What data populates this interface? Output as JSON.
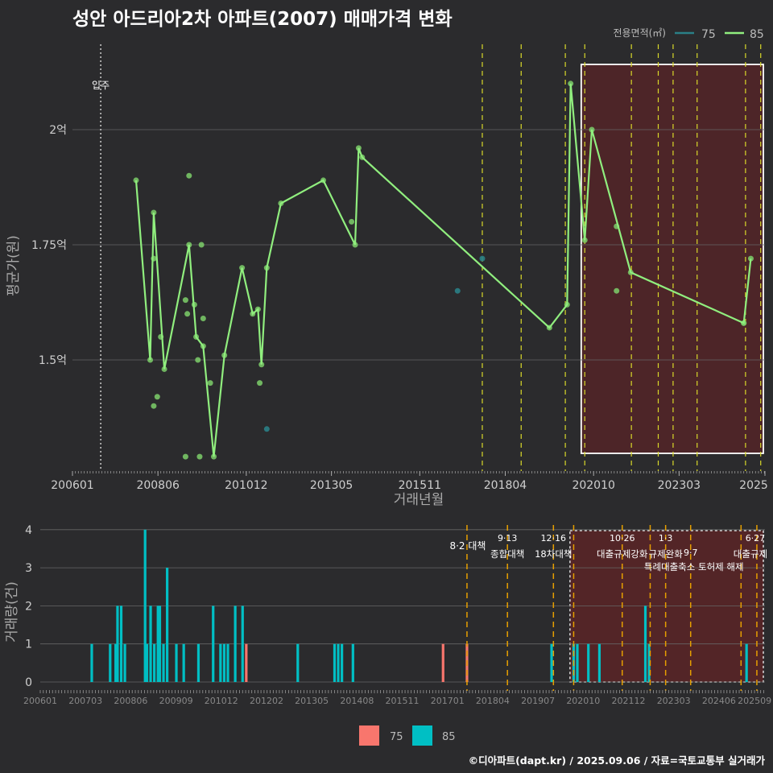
{
  "title": "성안 아드리아2차 아파트(2007) 매매가격 변화",
  "footer": "©디아파트(dapt.kr) / 2025.09.06 / 자료=국토교통부 실거래가",
  "colors": {
    "background": "#2b2b2d",
    "c75_line": "#2a7f86",
    "c85_line": "#90ee7e",
    "c85_dot": "#7ccf6a",
    "c75_dot": "#2a7f86",
    "bar75": "#f8766d",
    "bar85": "#00bfc4",
    "policy_top": "#d9d92a",
    "policy_bottom": "#e69f00",
    "highlight": "#5a2427"
  },
  "top_chart": {
    "type": "line",
    "ylabel": "평균가(원)",
    "xlabel": "거래년월",
    "y_ticks": [
      {
        "value": 1.5,
        "label": "1.5억"
      },
      {
        "value": 1.75,
        "label": "1.75억"
      },
      {
        "value": 2.0,
        "label": "2억"
      }
    ],
    "ylim": [
      1.25,
      2.22
    ],
    "x_ticks": [
      "200601",
      "200806",
      "201012",
      "201305",
      "201511",
      "201804",
      "202010",
      "202303",
      "2025"
    ],
    "legend_title": "전용면적(㎡)",
    "legend": [
      {
        "name": "75"
      },
      {
        "name": "85"
      }
    ],
    "annotation": "입주",
    "series_85_line": [
      [
        2007.8,
        1.89
      ],
      [
        2008.2,
        1.5
      ],
      [
        2008.3,
        1.82
      ],
      [
        2008.6,
        1.48
      ],
      [
        2009.3,
        1.75
      ],
      [
        2009.5,
        1.55
      ],
      [
        2009.7,
        1.53
      ],
      [
        2010.0,
        1.29
      ],
      [
        2010.3,
        1.51
      ],
      [
        2010.8,
        1.7
      ],
      [
        2011.1,
        1.6
      ],
      [
        2011.25,
        1.61
      ],
      [
        2011.35,
        1.49
      ],
      [
        2011.5,
        1.7
      ],
      [
        2011.9,
        1.84
      ],
      [
        2013.1,
        1.89
      ],
      [
        2014.0,
        1.75
      ],
      [
        2014.1,
        1.96
      ],
      [
        2014.2,
        1.94
      ],
      [
        2019.5,
        1.57
      ],
      [
        2020.0,
        1.62
      ],
      [
        2020.1,
        2.1
      ],
      [
        2020.5,
        1.76
      ],
      [
        2020.7,
        2.0
      ],
      [
        2021.8,
        1.69
      ],
      [
        2025.0,
        1.58
      ],
      [
        2025.2,
        1.72
      ]
    ],
    "points_85": [
      [
        2008.3,
        1.4
      ],
      [
        2008.4,
        1.42
      ],
      [
        2008.5,
        1.55
      ],
      [
        2008.3,
        1.72
      ],
      [
        2009.2,
        1.63
      ],
      [
        2009.3,
        1.9
      ],
      [
        2009.25,
        1.6
      ],
      [
        2009.45,
        1.62
      ],
      [
        2009.55,
        1.5
      ],
      [
        2009.7,
        1.59
      ],
      [
        2009.65,
        1.75
      ],
      [
        2009.9,
        1.45
      ],
      [
        2009.2,
        1.29
      ],
      [
        2009.6,
        1.29
      ],
      [
        2011.3,
        1.45
      ],
      [
        2013.9,
        1.8
      ],
      [
        2021.4,
        1.79
      ],
      [
        2021.4,
        1.65
      ],
      [
        2025.0,
        1.58
      ]
    ],
    "points_75": [
      [
        2011.5,
        1.35
      ],
      [
        2016.9,
        1.65
      ],
      [
        2017.6,
        1.72
      ]
    ]
  },
  "bottom_chart": {
    "type": "bar",
    "ylabel": "거래량(건)",
    "y_ticks": [
      "0",
      "1",
      "2",
      "3",
      "4"
    ],
    "x_ticks": [
      "200601",
      "200703",
      "200806",
      "200909",
      "201012",
      "201202",
      "201305",
      "201408",
      "201511",
      "201701",
      "201804",
      "201907",
      "202010",
      "202112",
      "202303",
      "202406",
      "202509"
    ],
    "legend": [
      {
        "name": "75"
      },
      {
        "name": "85"
      }
    ],
    "bars_85": [
      [
        2007.4,
        1
      ],
      [
        2007.9,
        1
      ],
      [
        2008.05,
        1
      ],
      [
        2008.1,
        2
      ],
      [
        2008.2,
        2
      ],
      [
        2008.3,
        1
      ],
      [
        2008.85,
        4
      ],
      [
        2008.9,
        1
      ],
      [
        2009.0,
        2
      ],
      [
        2009.1,
        1
      ],
      [
        2009.2,
        2
      ],
      [
        2009.25,
        2
      ],
      [
        2009.35,
        1
      ],
      [
        2009.45,
        3
      ],
      [
        2009.7,
        1
      ],
      [
        2009.9,
        1
      ],
      [
        2010.3,
        1
      ],
      [
        2010.7,
        2
      ],
      [
        2010.9,
        1
      ],
      [
        2011.0,
        1
      ],
      [
        2011.1,
        1
      ],
      [
        2011.3,
        2
      ],
      [
        2011.5,
        2
      ],
      [
        2013.0,
        1
      ],
      [
        2014.0,
        1
      ],
      [
        2014.1,
        1
      ],
      [
        2014.2,
        1
      ],
      [
        2014.5,
        1
      ],
      [
        2019.9,
        1
      ],
      [
        2020.5,
        1
      ],
      [
        2020.6,
        1
      ],
      [
        2020.9,
        1
      ],
      [
        2021.2,
        1
      ],
      [
        2022.45,
        2
      ],
      [
        2022.55,
        1
      ],
      [
        2025.2,
        1
      ]
    ],
    "bars_75": [
      [
        2011.6,
        1
      ],
      [
        2016.95,
        1
      ],
      [
        2017.6,
        1
      ]
    ],
    "policies": [
      {
        "x": 2017.6,
        "date": "8·2",
        "name": "대책"
      },
      {
        "x": 2018.7,
        "date": "9·13",
        "name": "종합대책"
      },
      {
        "x": 2019.95,
        "date": "12·16",
        "name": "18차대책"
      },
      {
        "x": 2020.5,
        "date": "",
        "name": ""
      },
      {
        "x": 2021.82,
        "date": "10·26",
        "name": "대출규제강화"
      },
      {
        "x": 2022.58,
        "date": "",
        "name": ""
      },
      {
        "x": 2023.0,
        "date": "1·3",
        "name": "규제완화"
      },
      {
        "x": 2023.68,
        "date": "9·7",
        "name": "특례대출축소 토허제 해제"
      },
      {
        "x": 2025.05,
        "date": "",
        "name": ""
      },
      {
        "x": 2025.48,
        "date": "6·27",
        "name": "대출규제"
      }
    ]
  }
}
